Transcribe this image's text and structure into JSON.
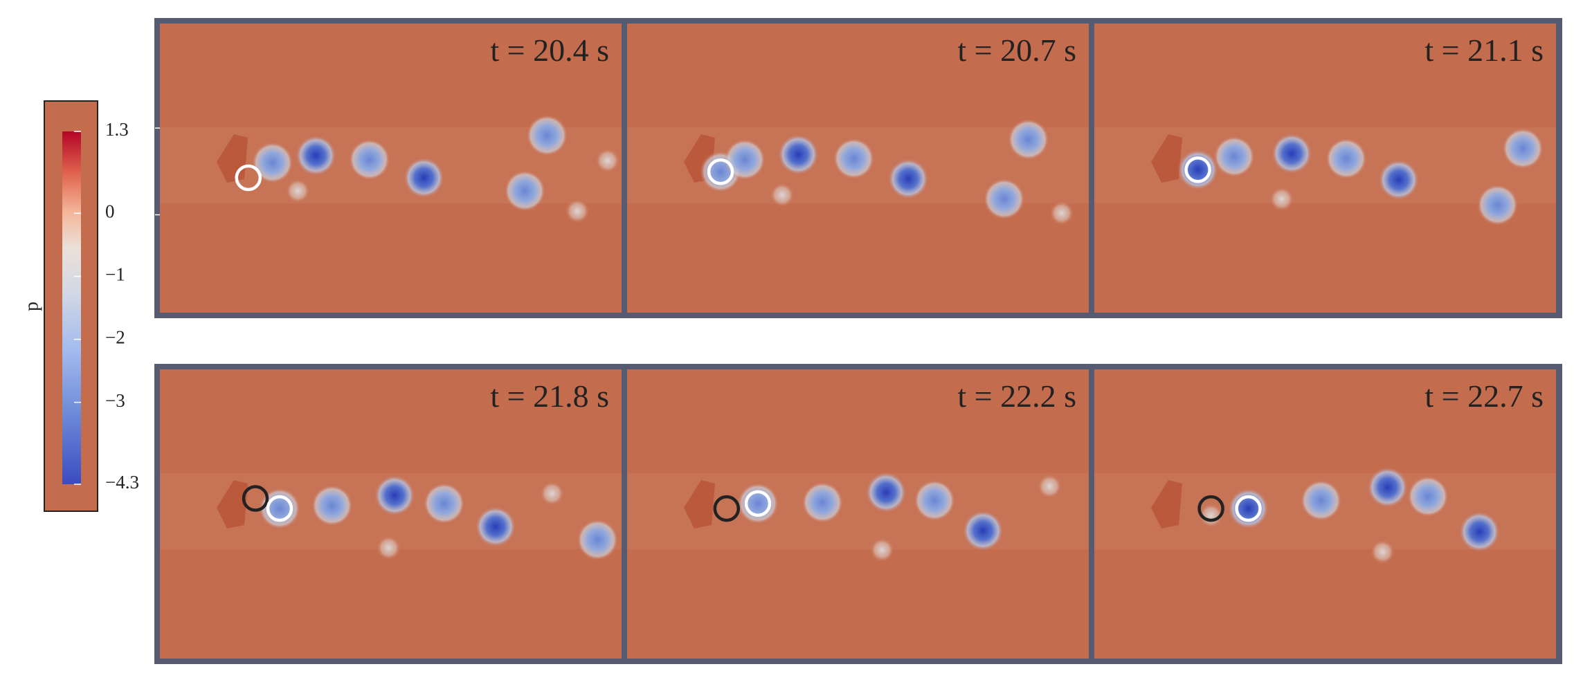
{
  "colorbar": {
    "label": "p",
    "lim": [
      1.3,
      -4.3
    ],
    "ticks": [
      1.3,
      0,
      {
        "value": -1,
        "label": "−1"
      },
      {
        "value": -2,
        "label": "−2"
      },
      {
        "value": -3,
        "label": "−3"
      },
      {
        "value": -4.3,
        "label": "−4.3"
      }
    ]
  },
  "panels": [
    {
      "label": "t = 20.4 s"
    },
    {
      "label": "t = 20.7 s"
    },
    {
      "label": "t = 21.1 s"
    },
    {
      "label": "t = 21.8 s"
    },
    {
      "label": "t = 22.2 s"
    },
    {
      "label": "t = 22.7 s"
    }
  ]
}
